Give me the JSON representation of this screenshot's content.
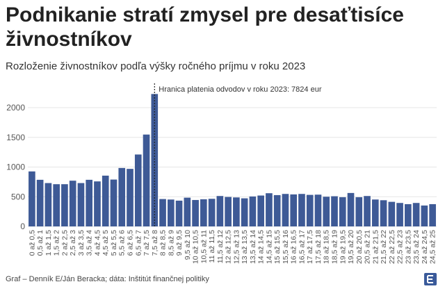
{
  "title": "Podnikanie stratí zmysel pre desaťtisíce živnostníkov",
  "subtitle": "Rozloženie živnostníkov podľa výšky ročného príjmu v roku 2023",
  "footer": "Graf – Denník E/Ján Beracka; dáta: Inštitút finančnej politiky",
  "logo_text": "E",
  "colors": {
    "bar": "#3e5a96",
    "grid": "#e6e6e6"
  },
  "chart_data": {
    "type": "bar",
    "title": "Podnikanie stratí zmysel pre desaťtisíce živnostníkov",
    "xlabel": "",
    "ylabel": "",
    "ylim": [
      0,
      2300
    ],
    "yticks": [
      0,
      500,
      1000,
      1500,
      2000
    ],
    "grid": true,
    "categories": [
      "0 až 0,5",
      "0,5 až 1",
      "1 až 1,5",
      "1,5 až 2",
      "2 až 2,5",
      "2,5 až 3",
      "3 až 3,5",
      "3,5 až 4",
      "4 až 4,5",
      "4,5 až 5",
      "5 až 5,5",
      "5,5 až 6",
      "6 až 6,5",
      "6,5 až 7",
      "7 až 7,5",
      "7,5 až 8",
      "8 až 8,5",
      "8,5 až 9",
      "9 až 9,5",
      "9,5 až 10",
      "10 až 10,5",
      "10,5 až 11",
      "11 až 11,5",
      "11,5 až 12",
      "12 až 12,5",
      "12,5 až 13",
      "13 až 13,5",
      "13,5 až 14",
      "14 až 14,5",
      "14,5 až 15",
      "15 až 15,5",
      "15,5 až 16",
      "16 až 16,5",
      "16,5 až 17",
      "17 až 17,5",
      "17,5 až 18",
      "18 až 18,5",
      "18,5 až 19",
      "19 až 19,5",
      "19,5 až 20",
      "20 až 20,5",
      "20,5 až 21",
      "21 až 21,5",
      "21,5 až 22",
      "22 až 22,5",
      "22,5 až 23",
      "23 až 23,5",
      "23,5 až 24",
      "24 až 24,5",
      "24,5 až 25"
    ],
    "values": [
      926,
      785,
      730,
      711,
      711,
      770,
      730,
      785,
      758,
      855,
      789,
      984,
      969,
      1211,
      1547,
      2230,
      461,
      453,
      434,
      484,
      445,
      457,
      465,
      512,
      496,
      488,
      473,
      504,
      520,
      559,
      527,
      547,
      539,
      547,
      531,
      535,
      500,
      508,
      492,
      563,
      492,
      512,
      453,
      441,
      414,
      395,
      375,
      395,
      352,
      375
    ],
    "annotation": {
      "label": "Hranica platenia odvodov v roku 2023: 7824 eur",
      "category": "7,5 až 8"
    }
  }
}
